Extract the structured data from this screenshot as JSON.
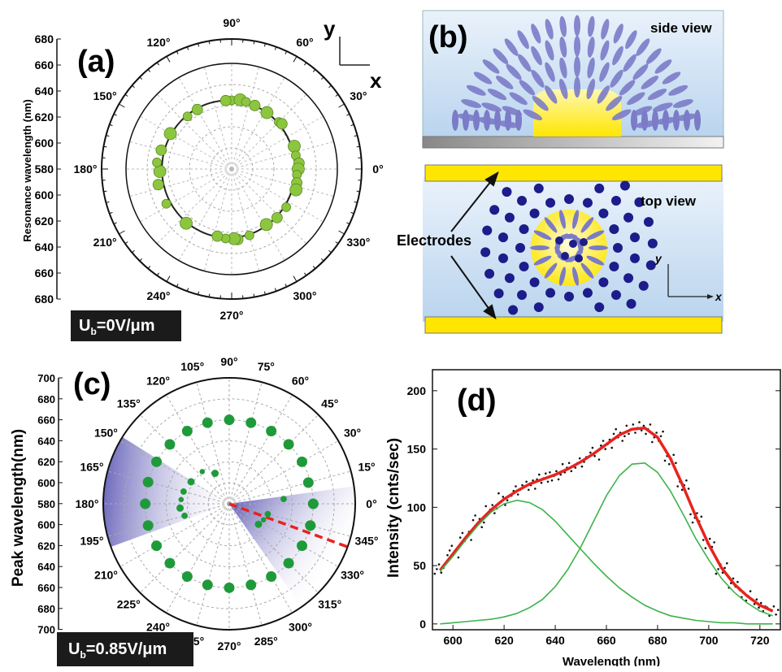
{
  "panel_a": {
    "label": "(a)",
    "axis_title": "Resonance wavelength (nm)",
    "axis_ticks": [
      "680",
      "660",
      "640",
      "620",
      "600",
      "580",
      "600",
      "620",
      "640",
      "660",
      "680"
    ],
    "angle_labels": [
      "0°",
      "30°",
      "60°",
      "90°",
      "120°",
      "150°",
      "180°",
      "210°",
      "240°",
      "270°",
      "300°",
      "330°"
    ],
    "coord_y": "y",
    "coord_x": "x",
    "bias_prefix": "U",
    "bias_sub": "b",
    "bias_value": "=0V/μm",
    "colors": {
      "marker": "#8cc63f",
      "curve": "#222222"
    }
  },
  "panel_b": {
    "label": "(b)",
    "side_title": "side view",
    "top_title": "top view",
    "electrodes": "Electrodes",
    "axis_y": "y",
    "axis_x": "x",
    "colors": {
      "background": "#cfe2f3",
      "electrode": "#ffe600",
      "lc": "#7b7bc8",
      "np": "#1c1c8a"
    }
  },
  "panel_c": {
    "label": "(c)",
    "axis_title": "Peak wavelength(nm)",
    "axis_ticks": [
      "700",
      "680",
      "660",
      "640",
      "620",
      "600",
      "580",
      "600",
      "620",
      "640",
      "660",
      "680",
      "700"
    ],
    "angle_labels": [
      "0°",
      "15°",
      "30°",
      "45°",
      "60°",
      "75°",
      "90°",
      "105°",
      "120°",
      "135°",
      "150°",
      "165°",
      "180°",
      "195°",
      "210°",
      "225°",
      "240°",
      "255°",
      "270°",
      "285°",
      "300°",
      "315°",
      "330°",
      "345°"
    ],
    "bias_prefix": "U",
    "bias_sub": "b",
    "bias_value": "=0.85V/μm",
    "colors": {
      "marker": "#1f9a3a",
      "sector": "#5a56b4",
      "dashed": "#e8231e"
    }
  },
  "chart_data": [
    {
      "type": "scatter",
      "panel": "a",
      "projection": "polar",
      "radial_range": [
        580,
        680
      ],
      "angle_deg": [
        90,
        95,
        83,
        78,
        70,
        58,
        45,
        42,
        20,
        12,
        5,
        0,
        -5,
        -12,
        -18,
        -35,
        -47,
        -58,
        -75,
        -85,
        -88,
        -95,
        -102,
        -130,
        -152,
        -168,
        -178,
        175,
        165,
        150,
        130,
        120
      ],
      "wavelength_nm": [
        645,
        645,
        646,
        645,
        644,
        643,
        643,
        644,
        643,
        642,
        644,
        643,
        642,
        643,
        644,
        643,
        643,
        642,
        645,
        647,
        646,
        646,
        645,
        647,
        650,
        651,
        648,
        651,
        649,
        647,
        645,
        645
      ]
    },
    {
      "type": "scatter",
      "panel": "c",
      "projection": "polar",
      "radial_range": [
        580,
        700
      ],
      "series": [
        {
          "name": "outer",
          "angle_deg": [
            90,
            75,
            60,
            45,
            30,
            15,
            0,
            -15,
            -30,
            -45,
            -60,
            -75,
            -90,
            -105,
            -120,
            -135,
            -150,
            -165,
            180,
            165,
            150,
            135,
            120,
            105
          ],
          "wavelength_nm": [
            660,
            660,
            660,
            660,
            660,
            658,
            660,
            660,
            660,
            660,
            660,
            660,
            660,
            660,
            660,
            660,
            660,
            660,
            660,
            660,
            660,
            660,
            660,
            660
          ]
        },
        {
          "name": "inner",
          "angle_deg": [
            150,
            165,
            175,
            185,
            195,
            130,
            115,
            -15,
            -25,
            -35,
            5
          ],
          "wavelength_nm": [
            622,
            625,
            626,
            627,
            624,
            620,
            612,
            618,
            616,
            614,
            632
          ]
        }
      ],
      "dashed_line_angle_deg": -20
    },
    {
      "type": "line",
      "panel": "d",
      "label": "(d)",
      "xlabel": "Wavelength (nm)",
      "ylabel": "Intensity (cnts/sec)",
      "xlim": [
        592,
        728
      ],
      "ylim": [
        -5,
        218
      ],
      "xticks": [
        600,
        620,
        640,
        660,
        680,
        700,
        720
      ],
      "yticks": [
        0,
        50,
        100,
        150,
        200
      ],
      "series": [
        {
          "name": "data",
          "color": "#111111",
          "x": [
            595,
            600,
            605,
            610,
            615,
            620,
            625,
            630,
            635,
            640,
            645,
            650,
            655,
            660,
            665,
            670,
            675,
            680,
            685,
            690,
            695,
            700,
            705,
            710,
            715,
            720,
            725
          ],
          "y": [
            48,
            62,
            75,
            88,
            98,
            107,
            114,
            120,
            124,
            128,
            133,
            139,
            146,
            154,
            162,
            167,
            168,
            160,
            142,
            118,
            92,
            68,
            48,
            34,
            24,
            16,
            11
          ]
        },
        {
          "name": "fit",
          "color": "#e8231e",
          "x": [
            595,
            600,
            605,
            610,
            615,
            620,
            625,
            630,
            635,
            640,
            645,
            650,
            655,
            660,
            665,
            670,
            675,
            680,
            685,
            690,
            695,
            700,
            705,
            710,
            715,
            720,
            725
          ],
          "y": [
            46,
            60,
            74,
            87,
            98,
            107,
            114,
            120,
            124,
            128,
            133,
            139,
            146,
            154,
            162,
            167,
            168,
            160,
            142,
            118,
            92,
            68,
            48,
            34,
            24,
            16,
            11
          ]
        },
        {
          "name": "peak 1",
          "color": "#3db34a",
          "x": [
            595,
            600,
            605,
            610,
            615,
            620,
            625,
            630,
            635,
            640,
            645,
            650,
            655,
            660,
            665,
            670,
            675,
            680,
            685,
            690,
            695,
            700,
            705,
            710,
            715,
            720,
            725
          ],
          "y": [
            45,
            58,
            72,
            85,
            96,
            103,
            106,
            104,
            98,
            88,
            76,
            64,
            52,
            41,
            31,
            23,
            16,
            11,
            7,
            5,
            3,
            2,
            1,
            1,
            0,
            0,
            0
          ]
        },
        {
          "name": "peak 2",
          "color": "#3db34a",
          "x": [
            595,
            600,
            605,
            610,
            615,
            620,
            625,
            630,
            635,
            640,
            645,
            650,
            655,
            660,
            665,
            670,
            675,
            680,
            685,
            690,
            695,
            700,
            705,
            710,
            715,
            720,
            725
          ],
          "y": [
            0,
            1,
            2,
            3,
            4,
            6,
            9,
            14,
            21,
            32,
            47,
            66,
            88,
            110,
            127,
            137,
            138,
            130,
            114,
            94,
            73,
            55,
            39,
            27,
            18,
            11,
            7
          ]
        }
      ]
    }
  ]
}
